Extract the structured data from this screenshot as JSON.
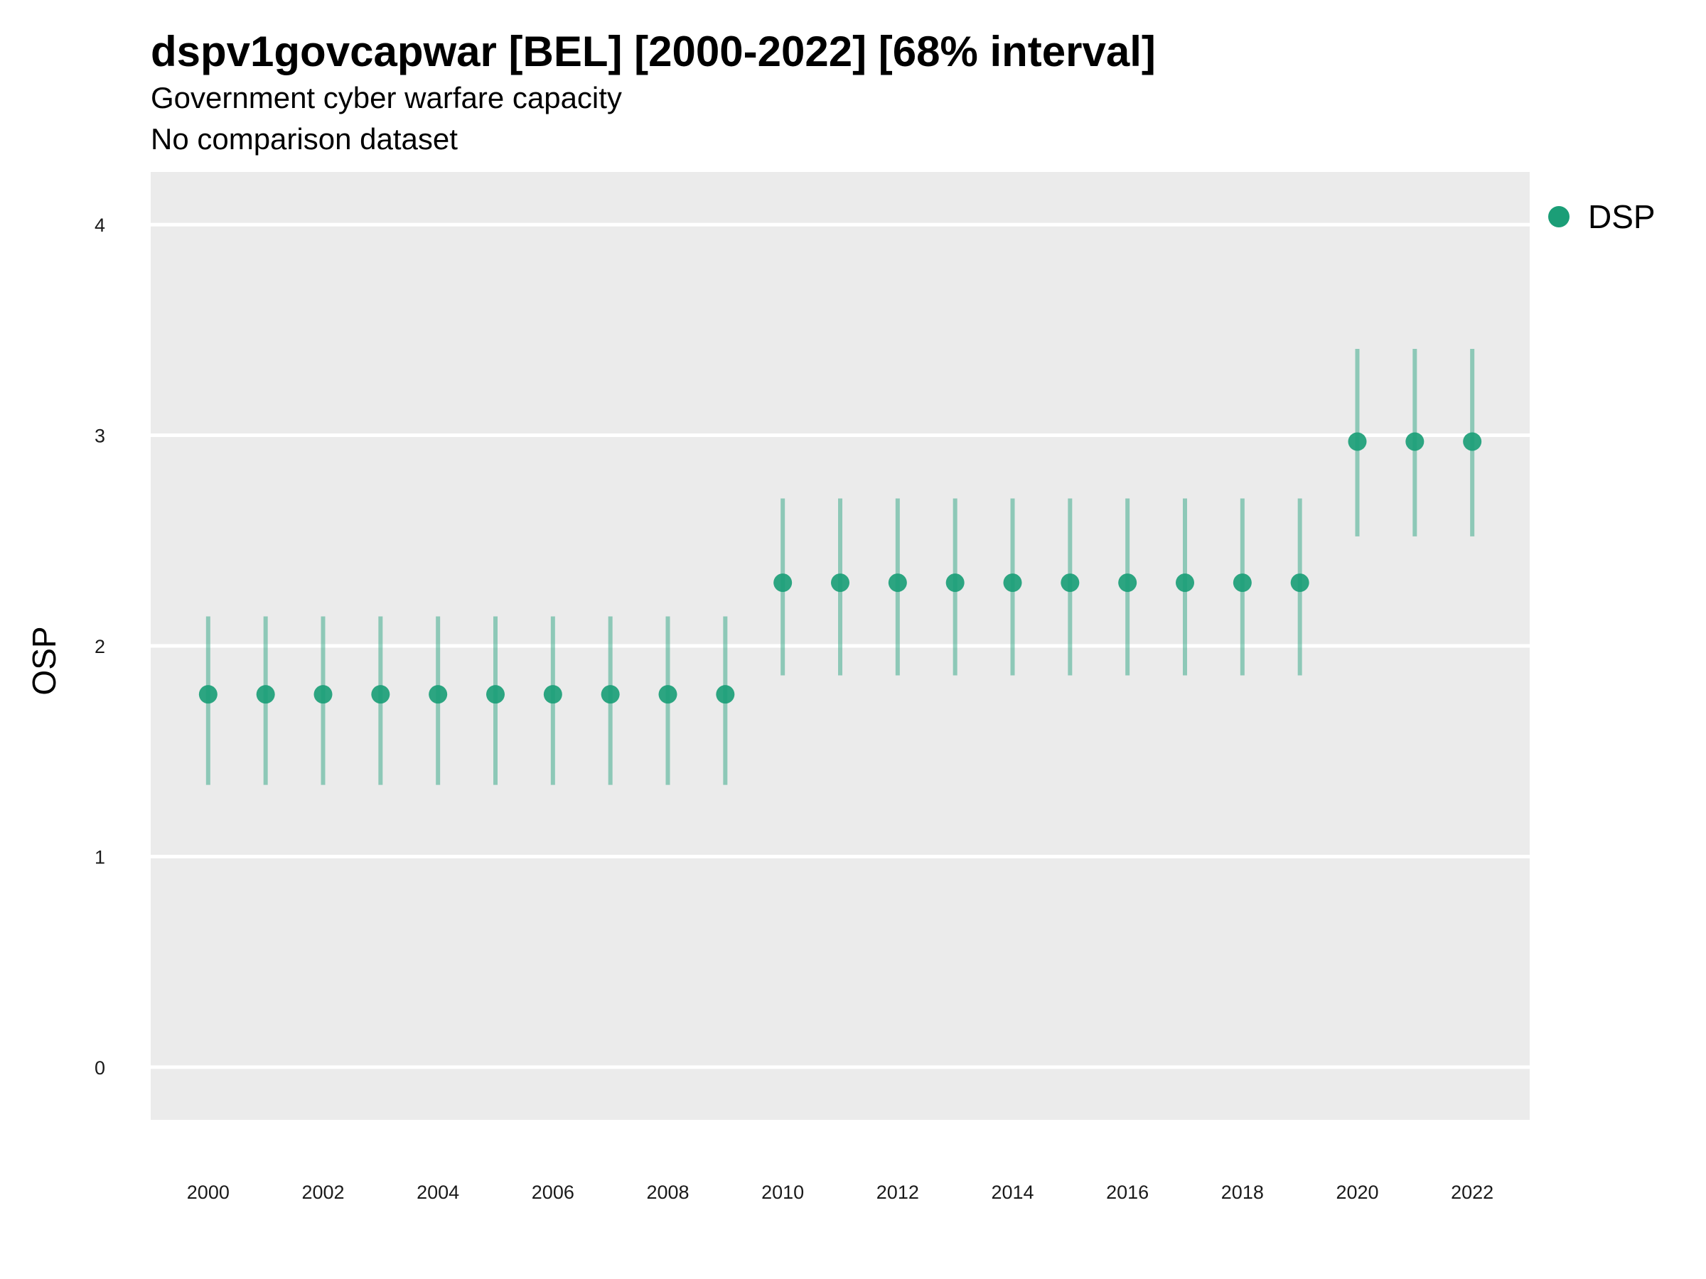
{
  "chart_data": {
    "type": "scatter",
    "title": "dspv1govcapwar [BEL] [2000-2022] [68% interval]",
    "subtitle": [
      "Government cyber warfare capacity",
      "No comparison dataset"
    ],
    "xlabel": "",
    "ylabel": "OSP",
    "ylim": [
      -0.25,
      4.25
    ],
    "xlim": [
      1999,
      2023
    ],
    "x_ticks": [
      2000,
      2002,
      2004,
      2006,
      2008,
      2010,
      2012,
      2014,
      2016,
      2018,
      2020,
      2022
    ],
    "y_ticks": [
      0,
      1,
      2,
      3,
      4
    ],
    "grid": true,
    "legend_position": "right",
    "series": [
      {
        "name": "DSP",
        "color": "#1b9e77",
        "x": [
          2000,
          2001,
          2002,
          2003,
          2004,
          2005,
          2006,
          2007,
          2008,
          2009,
          2010,
          2011,
          2012,
          2013,
          2014,
          2015,
          2016,
          2017,
          2018,
          2019,
          2020,
          2021,
          2022
        ],
        "y": [
          1.77,
          1.77,
          1.77,
          1.77,
          1.77,
          1.77,
          1.77,
          1.77,
          1.77,
          1.77,
          2.3,
          2.3,
          2.3,
          2.3,
          2.3,
          2.3,
          2.3,
          2.3,
          2.3,
          2.3,
          2.97,
          2.97,
          2.97
        ],
        "lower": [
          1.34,
          1.34,
          1.34,
          1.34,
          1.34,
          1.34,
          1.34,
          1.34,
          1.34,
          1.34,
          1.86,
          1.86,
          1.86,
          1.86,
          1.86,
          1.86,
          1.86,
          1.86,
          1.86,
          1.86,
          2.52,
          2.52,
          2.52
        ],
        "upper": [
          2.14,
          2.14,
          2.14,
          2.14,
          2.14,
          2.14,
          2.14,
          2.14,
          2.14,
          2.14,
          2.7,
          2.7,
          2.7,
          2.7,
          2.7,
          2.7,
          2.7,
          2.7,
          2.7,
          2.7,
          3.41,
          3.41,
          3.41
        ]
      }
    ]
  }
}
